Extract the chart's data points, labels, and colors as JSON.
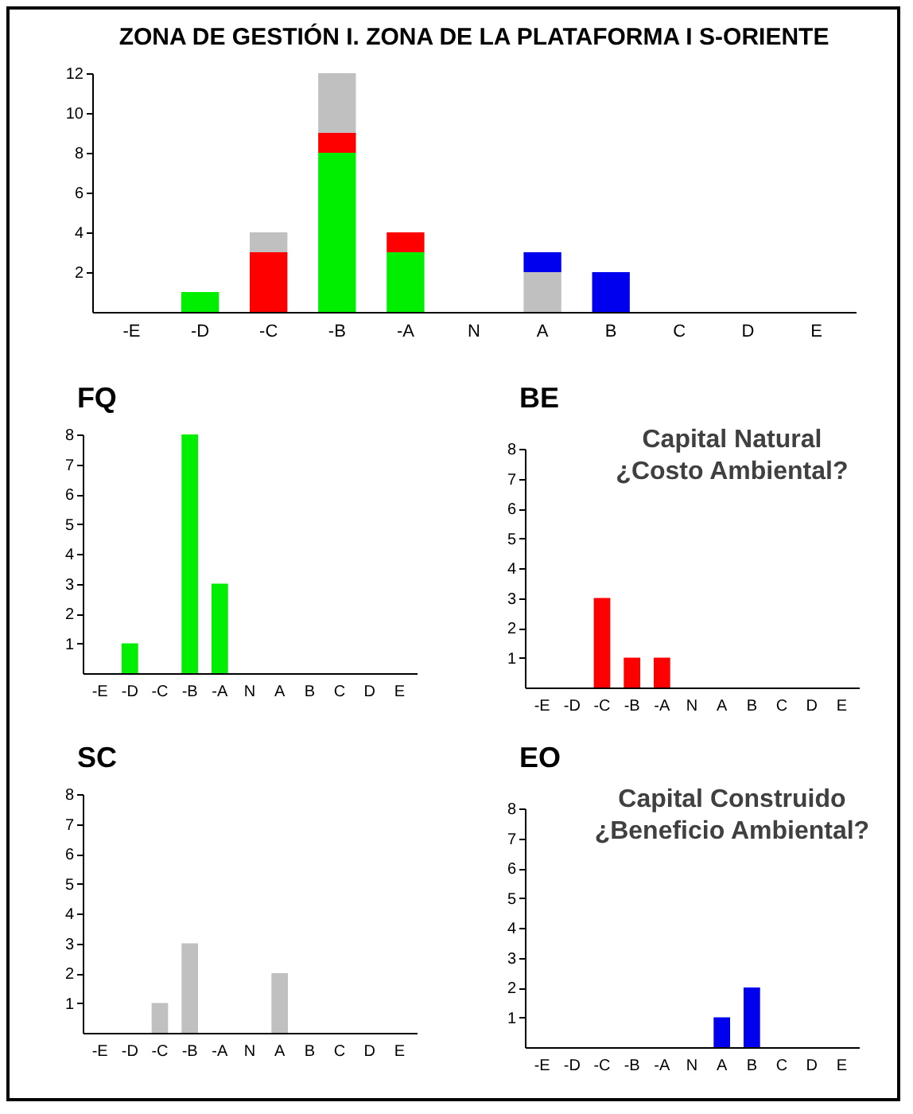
{
  "chart_data": [
    {
      "type": "bar",
      "title": "ZONA DE GESTIÓN I. ZONA DE LA PLATAFORMA I S-ORIENTE",
      "categories": [
        "-E",
        "-D",
        "-C",
        "-B",
        "-A",
        "N",
        "A",
        "B",
        "C",
        "D",
        "E"
      ],
      "stacked": true,
      "ylim": [
        0,
        12
      ],
      "yticks": [
        2,
        4,
        6,
        8,
        10,
        12
      ],
      "series": [
        {
          "color": "#00ee00",
          "values": [
            0,
            1,
            0,
            8,
            3,
            0,
            0,
            0,
            0,
            0,
            0
          ]
        },
        {
          "color": "#ff0000",
          "values": [
            0,
            0,
            3,
            1,
            1,
            0,
            0,
            0,
            0,
            0,
            0
          ]
        },
        {
          "color": "#c0c0c0",
          "values": [
            0,
            0,
            1,
            3,
            0,
            0,
            2,
            0,
            0,
            0,
            0
          ]
        },
        {
          "color": "#0000ee",
          "values": [
            0,
            0,
            0,
            0,
            0,
            0,
            1,
            2,
            0,
            0,
            0
          ]
        }
      ]
    },
    {
      "type": "bar",
      "title": "FQ",
      "categories": [
        "-E",
        "-D",
        "-C",
        "-B",
        "-A",
        "N",
        "A",
        "B",
        "C",
        "D",
        "E"
      ],
      "ylim": [
        0,
        8
      ],
      "yticks": [
        1,
        2,
        3,
        4,
        5,
        6,
        7,
        8
      ],
      "series": [
        {
          "color": "#00ee00",
          "values": [
            0,
            1,
            0,
            8,
            3,
            0,
            0,
            0,
            0,
            0,
            0
          ]
        }
      ]
    },
    {
      "type": "bar",
      "title": "BE",
      "annotations": [
        "Capital Natural\n¿Costo Ambiental?"
      ],
      "categories": [
        "-E",
        "-D",
        "-C",
        "-B",
        "-A",
        "N",
        "A",
        "B",
        "C",
        "D",
        "E"
      ],
      "ylim": [
        0,
        8
      ],
      "yticks": [
        1,
        2,
        3,
        4,
        5,
        6,
        7,
        8
      ],
      "series": [
        {
          "color": "#ff0000",
          "values": [
            0,
            0,
            3,
            1,
            1,
            0,
            0,
            0,
            0,
            0,
            0
          ]
        }
      ]
    },
    {
      "type": "bar",
      "title": "SC",
      "categories": [
        "-E",
        "-D",
        "-C",
        "-B",
        "-A",
        "N",
        "A",
        "B",
        "C",
        "D",
        "E"
      ],
      "ylim": [
        0,
        8
      ],
      "yticks": [
        1,
        2,
        3,
        4,
        5,
        6,
        7,
        8
      ],
      "series": [
        {
          "color": "#c0c0c0",
          "values": [
            0,
            0,
            1,
            3,
            0,
            0,
            2,
            0,
            0,
            0,
            0
          ]
        }
      ]
    },
    {
      "type": "bar",
      "title": "EO",
      "annotations": [
        "Capital Construido\n¿Beneficio Ambiental?"
      ],
      "categories": [
        "-E",
        "-D",
        "-C",
        "-B",
        "-A",
        "N",
        "A",
        "B",
        "C",
        "D",
        "E"
      ],
      "ylim": [
        0,
        8
      ],
      "yticks": [
        1,
        2,
        3,
        4,
        5,
        6,
        7,
        8
      ],
      "series": [
        {
          "color": "#0000ee",
          "values": [
            0,
            0,
            0,
            0,
            0,
            0,
            1,
            2,
            0,
            0,
            0
          ]
        }
      ]
    }
  ]
}
